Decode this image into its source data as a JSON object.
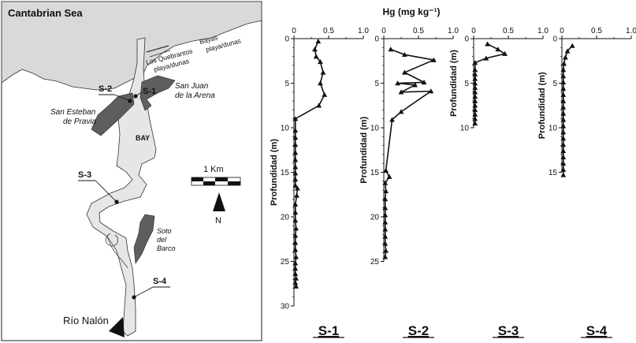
{
  "map": {
    "sea_label": "Cantabrian Sea",
    "bay_label": "BAY",
    "places": {
      "bayas": [
        "Bayas",
        "playa/dunas"
      ],
      "quebrantos": [
        "Los Quebrantos",
        "playa/dunas"
      ],
      "san_juan": [
        "San Juan",
        "de la Arena"
      ],
      "san_esteban": [
        "San Esteban",
        "de Pravia"
      ],
      "soto": [
        "Soto",
        "del",
        "Barco"
      ],
      "rio": "Río Nalón"
    },
    "sites": {
      "s1": "S-1",
      "s2": "S-2",
      "s3": "S-3",
      "s4": "S-4"
    },
    "scale_label": "1 Km",
    "north_label": "N"
  },
  "colors": {
    "sea": "#d9d9d9",
    "river": "#e6e6e6",
    "urban": "#5e5e5e",
    "line": "#000000"
  },
  "chart_data": {
    "type": "line",
    "title": "Hg (mg kg⁻¹)",
    "ylabel": "Profundidad (m)",
    "x_ticks": [
      "0",
      "0.5",
      "1.0"
    ],
    "grid": false,
    "marker": "triangle",
    "panels": [
      {
        "name": "S-1",
        "xlim": [
          0,
          1
        ],
        "ylim": [
          0,
          30
        ],
        "y_ticks": [
          "0",
          "5",
          "10",
          "15",
          "20",
          "25",
          "30"
        ],
        "series": {
          "x": [
            0.35,
            0.3,
            0.32,
            0.38,
            0.42,
            0.38,
            0.44,
            0.36,
            0.02,
            0.02,
            0.02,
            0.02,
            0.02,
            0.02,
            0.02,
            0.02,
            0.02,
            0.02,
            0.05,
            0.04,
            0.02,
            0.02,
            0.02,
            0.03,
            0.02,
            0.02,
            0.02,
            0.03,
            0.02,
            0.02,
            0.02,
            0.03,
            0.02,
            0.03
          ],
          "y": [
            0.3,
            1.2,
            2.0,
            2.6,
            3.8,
            5.0,
            6.3,
            7.5,
            9.0,
            10.3,
            11.1,
            11.9,
            12.8,
            13.6,
            14.4,
            15.1,
            15.8,
            16.5,
            16.8,
            17.6,
            18.6,
            19.5,
            20.4,
            21.3,
            22.1,
            22.9,
            23.7,
            24.5,
            25.2,
            25.8,
            26.4,
            26.9,
            27.4,
            27.8
          ]
        }
      },
      {
        "name": "S-2",
        "xlim": [
          0,
          1
        ],
        "ylim": [
          0,
          25
        ],
        "y_ticks": [
          "0",
          "5",
          "10",
          "15",
          "20",
          "25"
        ],
        "series": {
          "x": [
            0.1,
            0.3,
            0.72,
            0.3,
            0.58,
            0.2,
            0.45,
            0.25,
            0.68,
            0.25,
            0.12,
            0.03,
            0.08,
            0.02,
            0.03,
            0.02,
            0.02,
            0.02,
            0.02,
            0.02,
            0.02,
            0.02,
            0.03,
            0.02
          ],
          "y": [
            1.2,
            1.8,
            2.4,
            3.8,
            4.9,
            5.0,
            5.2,
            6.0,
            5.9,
            8.2,
            9.1,
            14.8,
            15.5,
            16.2,
            17.1,
            18.0,
            19.0,
            19.8,
            20.6,
            21.4,
            22.2,
            23.0,
            23.8,
            24.5
          ]
        }
      },
      {
        "name": "S-3",
        "xlim": [
          0,
          1
        ],
        "ylim": [
          0,
          10
        ],
        "y_ticks": [
          "0",
          "5",
          "10"
        ],
        "series": {
          "x": [
            0.2,
            0.35,
            0.45,
            0.18,
            0.02,
            0.02,
            0.02,
            0.02,
            0.02,
            0.02,
            0.02,
            0.02,
            0.02,
            0.02,
            0.02,
            0.02,
            0.02,
            0.02
          ],
          "y": [
            0.6,
            1.2,
            1.7,
            2.2,
            2.7,
            3.5,
            4.0,
            4.5,
            5.0,
            5.5,
            6.0,
            6.5,
            7.0,
            7.5,
            8.0,
            8.5,
            9.0,
            9.5
          ]
        }
      },
      {
        "name": "S-4",
        "xlim": [
          0,
          1
        ],
        "ylim": [
          0,
          15
        ],
        "y_ticks": [
          "0",
          "5",
          "10",
          "15"
        ],
        "series": {
          "x": [
            0.15,
            0.08,
            0.05,
            0.03,
            0.02,
            0.02,
            0.02,
            0.02,
            0.02,
            0.02,
            0.02,
            0.02,
            0.02,
            0.02,
            0.02,
            0.02,
            0.02,
            0.02,
            0.02,
            0.02,
            0.02,
            0.02
          ],
          "y": [
            0.8,
            1.4,
            2.1,
            2.8,
            3.5,
            4.2,
            4.9,
            5.6,
            6.3,
            7.0,
            7.7,
            8.4,
            9.1,
            9.8,
            10.5,
            11.2,
            11.9,
            12.6,
            13.3,
            14.0,
            14.7,
            15.3
          ]
        }
      }
    ]
  }
}
